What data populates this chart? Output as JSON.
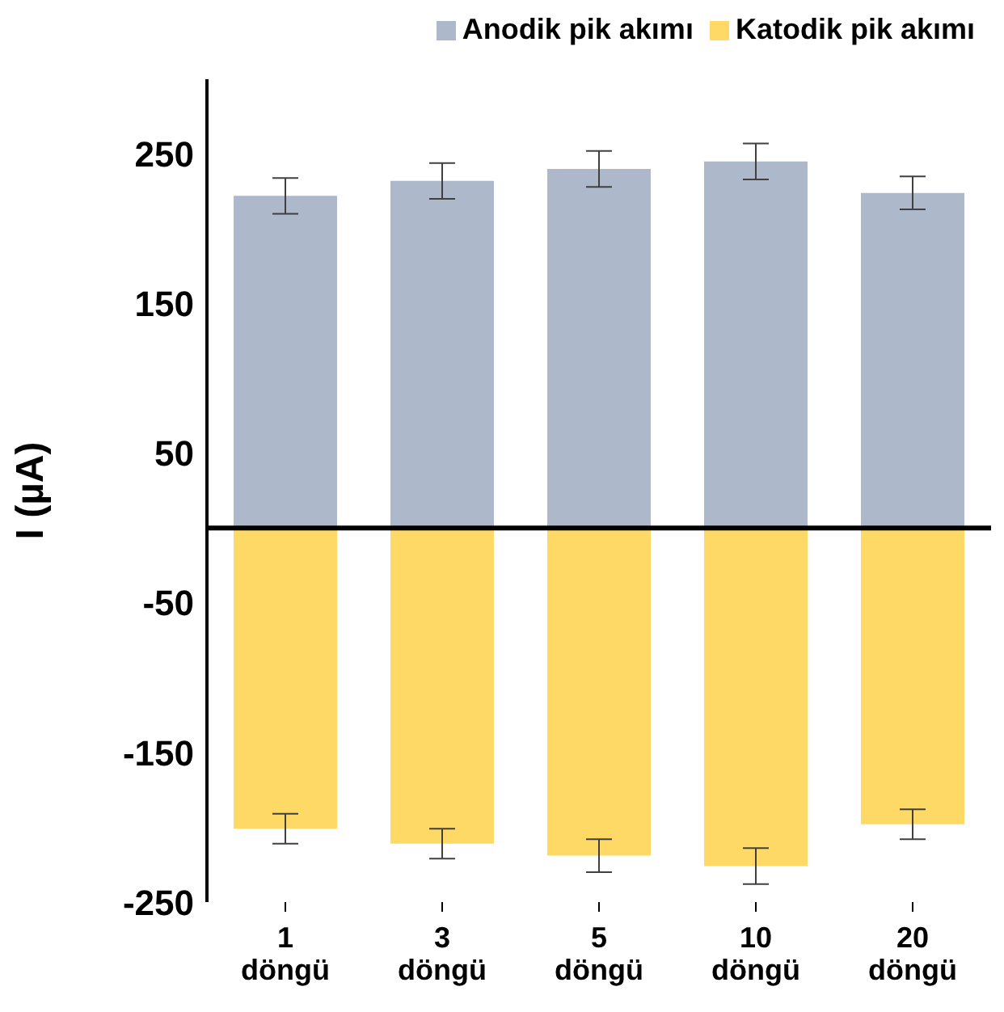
{
  "chart_data": {
    "type": "bar",
    "ylabel": "I (µA)",
    "categories": [
      "1 döngü",
      "3 döngü",
      "5 döngü",
      "10 döngü",
      "20 döngü"
    ],
    "series": [
      {
        "name": "Anodik pik akımı",
        "color": "#adb9ca",
        "values": [
          222,
          232,
          240,
          245,
          224
        ],
        "errors": [
          12,
          12,
          12,
          12,
          11
        ]
      },
      {
        "name": "Katodik pik akımı",
        "color": "#ffd966",
        "values": [
          -201,
          -211,
          -219,
          -226,
          -198
        ],
        "errors": [
          10,
          10,
          11,
          12,
          10
        ]
      }
    ],
    "stacked": true,
    "ylim": [
      -250,
      300
    ],
    "yticks": [
      -250,
      -150,
      -50,
      50,
      150,
      250
    ],
    "ref_lines": [
      {
        "axis": "y",
        "value": 0,
        "color": "#000000"
      }
    ],
    "legend": "top right",
    "grid": false
  }
}
